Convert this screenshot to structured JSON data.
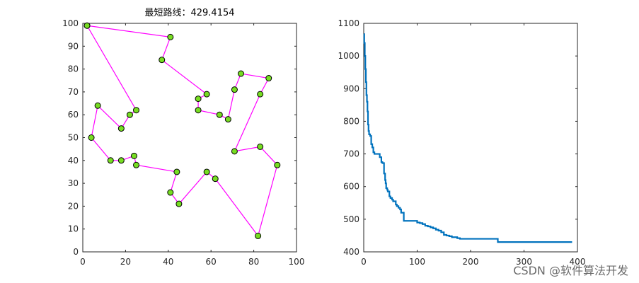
{
  "chart_data": [
    {
      "type": "scatter",
      "title": "最短路线：429.4154",
      "xlim": [
        0,
        100
      ],
      "ylim": [
        0,
        100
      ],
      "xticks": [
        "0",
        "20",
        "40",
        "60",
        "80",
        "100"
      ],
      "yticks": [
        "0",
        "10",
        "20",
        "30",
        "40",
        "50",
        "60",
        "70",
        "80",
        "90",
        "100"
      ],
      "route_color": "#ff00ff",
      "marker_fill": "#77dd22",
      "marker_edge": "#000000",
      "route": [
        [
          2,
          99
        ],
        [
          41,
          94
        ],
        [
          37,
          84
        ],
        [
          58,
          69
        ],
        [
          54,
          67
        ],
        [
          54,
          62
        ],
        [
          64,
          60
        ],
        [
          68,
          58
        ],
        [
          71,
          71
        ],
        [
          74,
          78
        ],
        [
          87,
          76
        ],
        [
          83,
          69
        ],
        [
          71,
          44
        ],
        [
          83,
          46
        ],
        [
          91,
          38
        ],
        [
          82,
          7
        ],
        [
          62,
          32
        ],
        [
          58,
          35
        ],
        [
          45,
          21
        ],
        [
          41,
          26
        ],
        [
          44,
          35
        ],
        [
          25,
          38
        ],
        [
          24,
          42
        ],
        [
          18,
          40
        ],
        [
          13,
          40
        ],
        [
          4,
          50
        ],
        [
          7,
          64
        ],
        [
          18,
          54
        ],
        [
          22,
          60
        ],
        [
          25,
          62
        ],
        [
          2,
          99
        ]
      ]
    },
    {
      "type": "line",
      "xlim": [
        0,
        400
      ],
      "ylim": [
        400,
        1100
      ],
      "xticks": [
        "0",
        "100",
        "200",
        "300",
        "400"
      ],
      "yticks": [
        "400",
        "500",
        "600",
        "700",
        "800",
        "900",
        "1000",
        "1100"
      ],
      "line_color": "#0072bd",
      "x": [
        0,
        1,
        2,
        3,
        4,
        5,
        6,
        7,
        8,
        9,
        10,
        12,
        14,
        16,
        18,
        20,
        25,
        30,
        33,
        35,
        36,
        38,
        40,
        41,
        42,
        44,
        45,
        48,
        50,
        53,
        55,
        60,
        62,
        65,
        68,
        70,
        75,
        76,
        78,
        80,
        95,
        100,
        105,
        110,
        115,
        120,
        125,
        130,
        135,
        140,
        145,
        150,
        155,
        160,
        165,
        170,
        175,
        180,
        185,
        200,
        230,
        250,
        251,
        300,
        350,
        390
      ],
      "values": [
        1067,
        1040,
        1000,
        960,
        920,
        880,
        860,
        830,
        790,
        770,
        760,
        755,
        730,
        720,
        705,
        700,
        700,
        690,
        675,
        672,
        672,
        640,
        620,
        610,
        595,
        590,
        585,
        570,
        565,
        560,
        555,
        545,
        540,
        535,
        530,
        520,
        495,
        495,
        495,
        495,
        495,
        490,
        488,
        485,
        480,
        478,
        475,
        472,
        468,
        465,
        460,
        452,
        450,
        448,
        445,
        445,
        442,
        440,
        440,
        440,
        440,
        440,
        430,
        430,
        430,
        430
      ]
    }
  ],
  "watermark": "CSDN @软件算法开发"
}
